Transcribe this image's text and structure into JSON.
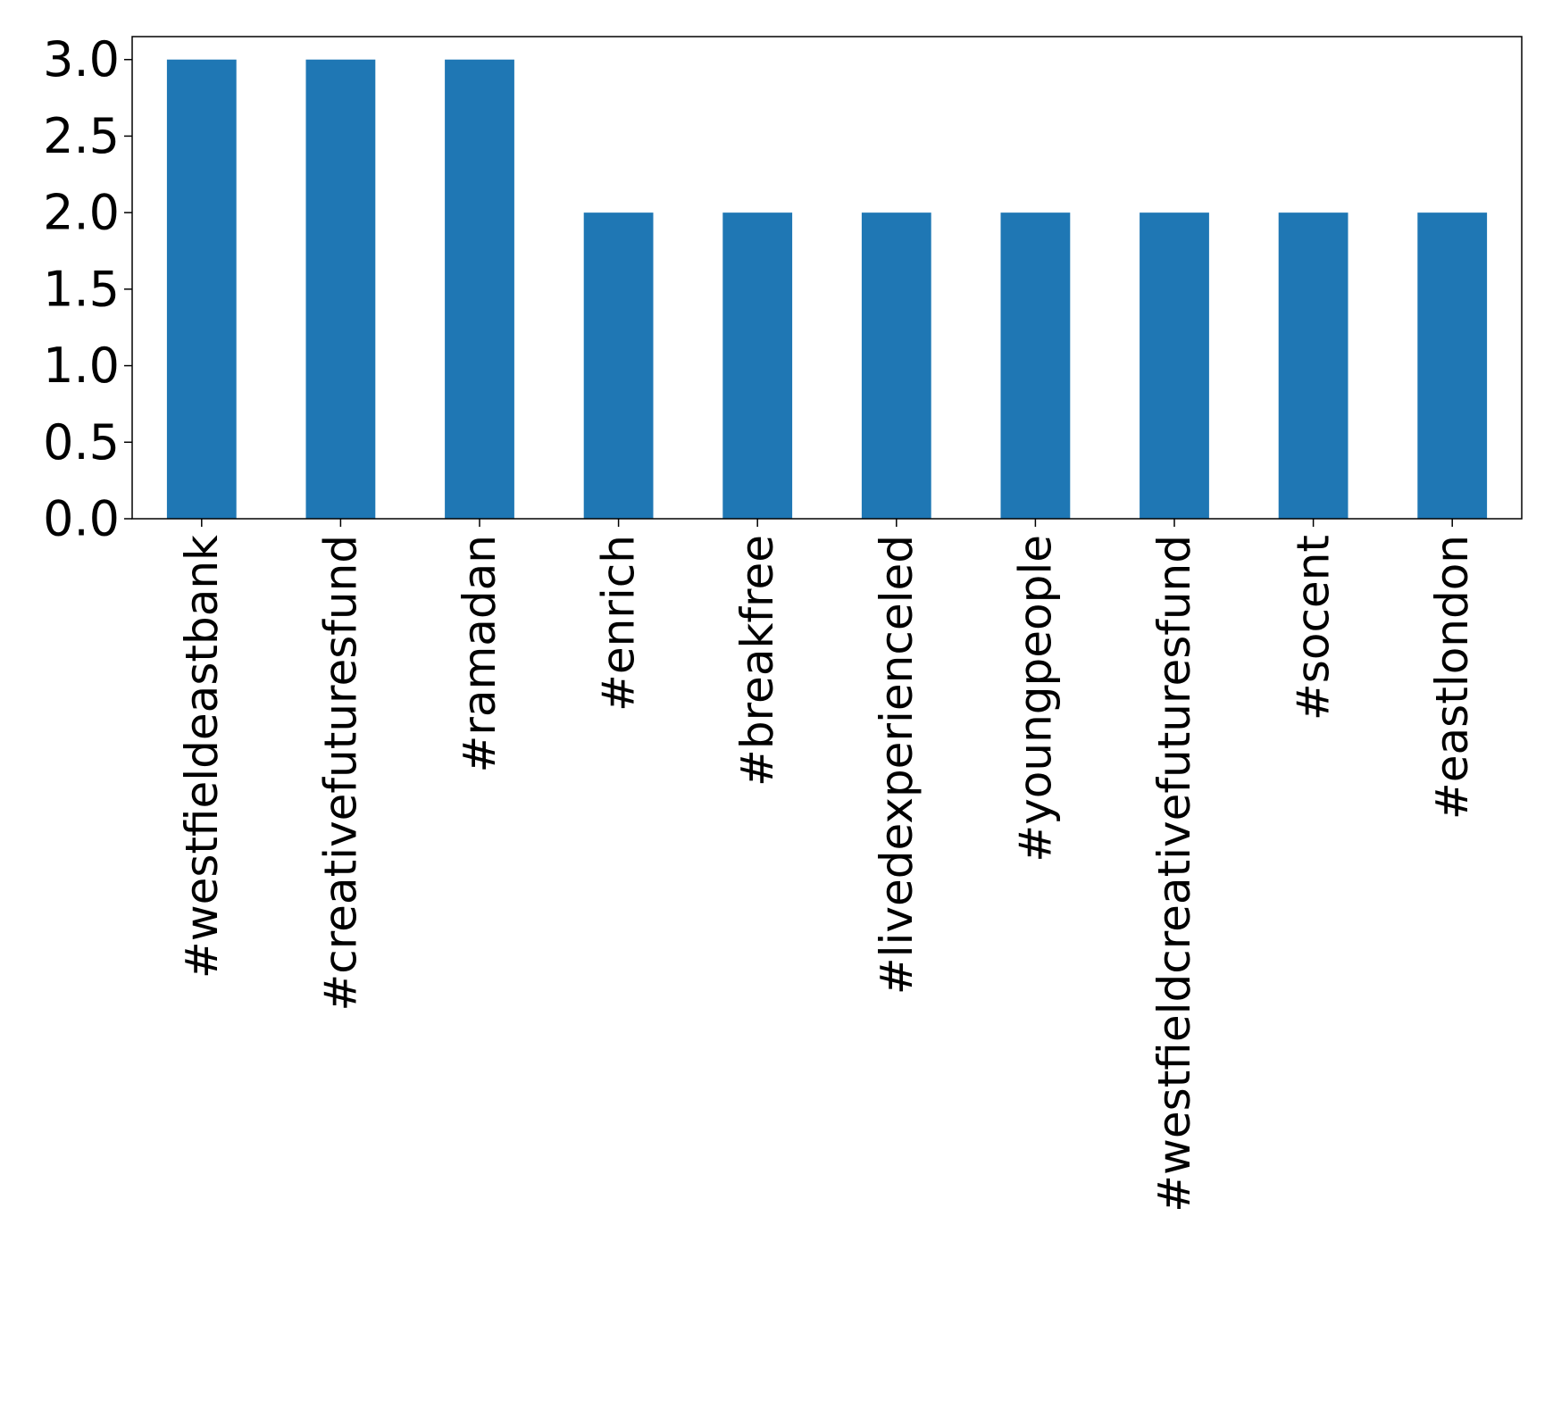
{
  "chart_data": {
    "type": "bar",
    "title": "",
    "xlabel": "",
    "ylabel": "",
    "categories": [
      "#westfieldeastbank",
      "#creativefuturesfund",
      "#ramadan",
      "#enrich",
      "#breakfree",
      "#livedexperienceled",
      "#youngpeople",
      "#westfieldcreativefuturesfund",
      "#socent",
      "#eastlondon"
    ],
    "values": [
      3,
      3,
      3,
      2,
      2,
      2,
      2,
      2,
      2,
      2
    ],
    "ylim": [
      0,
      3.15
    ],
    "yticks": [
      "0.0",
      "0.5",
      "1.0",
      "1.5",
      "2.0",
      "2.5",
      "3.0"
    ],
    "bar_color": "#1f77b4",
    "grid": false,
    "legend": "none"
  }
}
